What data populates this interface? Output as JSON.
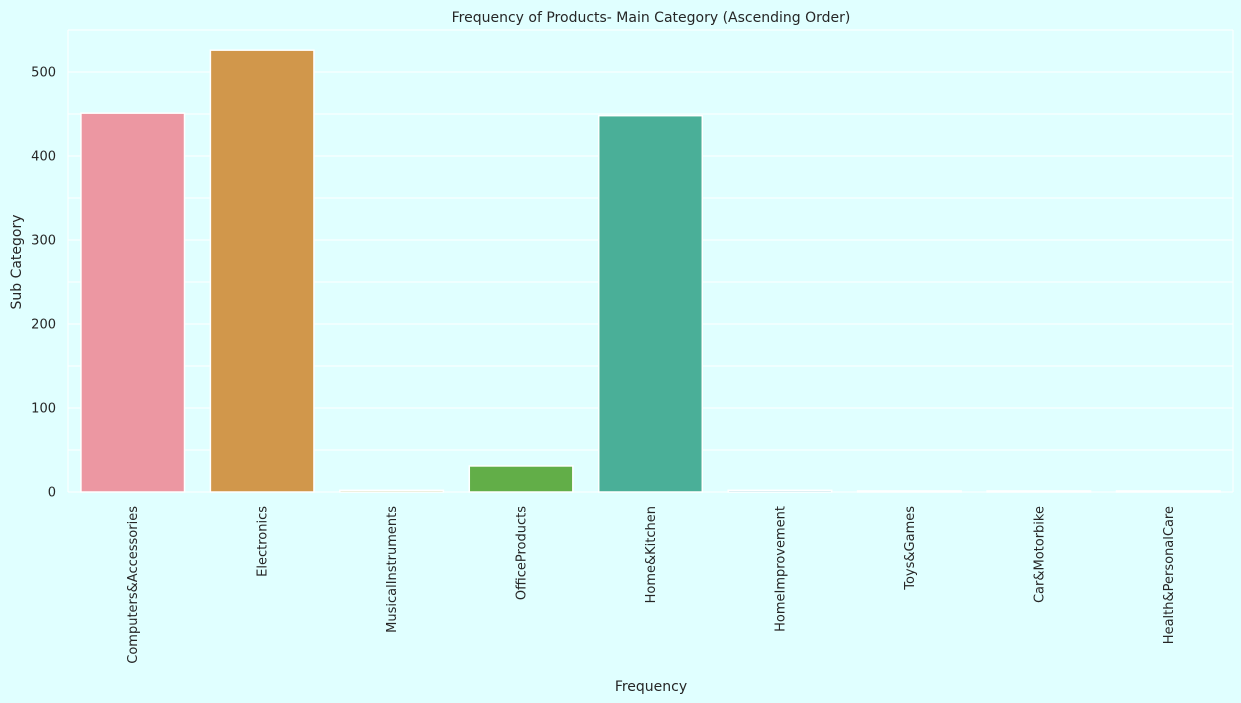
{
  "chart_data": {
    "type": "bar",
    "title": "Frequency of Products- Main Category (Ascending Order)",
    "xlabel": "Frequency",
    "ylabel": "Sub Category",
    "categories": [
      "Computers&Accessories",
      "Electronics",
      "MusicalInstruments",
      "OfficeProducts",
      "Home&Kitchen",
      "HomeImprovement",
      "Toys&Games",
      "Car&Motorbike",
      "Health&PersonalCare"
    ],
    "values": [
      451,
      526,
      2,
      31,
      448,
      2,
      1,
      1,
      1
    ],
    "colors": [
      "#ec97a2",
      "#d1974b",
      "#a6a64b",
      "#62ae48",
      "#4aaf98",
      "#4fb0c3",
      "#7fa6e6",
      "#c08fe9",
      "#e78fd4"
    ],
    "ylim": [
      0,
      550
    ],
    "yticks": [
      0,
      100,
      200,
      300,
      400,
      500
    ],
    "grid": true,
    "background": "#e0ffff"
  }
}
